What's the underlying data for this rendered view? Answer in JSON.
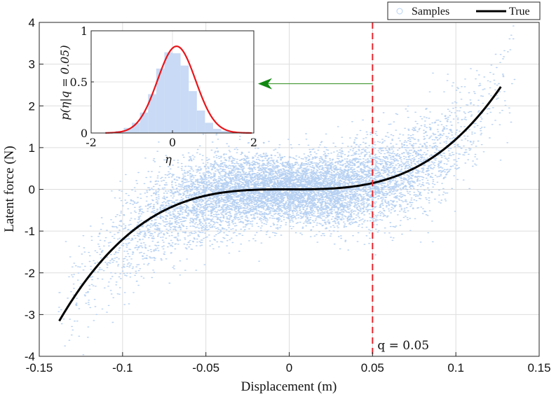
{
  "chart_data": [
    {
      "type": "scatter",
      "xlabel": "Displacement (m)",
      "ylabel": "Latent force (N)",
      "xlim": [
        -0.15,
        0.15
      ],
      "ylim": [
        -4,
        4
      ],
      "xticks": [
        "-0.15",
        "-0.1",
        "-0.05",
        "0",
        "0.05",
        "0.1",
        "0.15"
      ],
      "yticks": [
        "4",
        "3",
        "2",
        "1",
        "0",
        "-1",
        "-2",
        "-3",
        "-4"
      ],
      "grid": true,
      "legend_position": "top-right, outside",
      "series": [
        {
          "name": "Samples",
          "marker": "circle",
          "color": "#b7d1f2",
          "x_range": [
            -0.14,
            0.135
          ],
          "noise_sd": 0.38
        },
        {
          "name": "True",
          "style": "line",
          "color": "#000000",
          "x": [
            -0.138,
            -0.12,
            -0.1,
            -0.08,
            -0.06,
            -0.04,
            -0.02,
            0,
            0.02,
            0.04,
            0.05,
            0.06,
            0.08,
            0.1,
            0.11,
            0.12,
            0.127
          ],
          "y": [
            -3.15,
            -2.1,
            -1.22,
            -0.63,
            -0.27,
            -0.08,
            -0.01,
            0.0,
            0.01,
            0.08,
            0.16,
            0.27,
            0.63,
            1.22,
            1.62,
            2.1,
            2.43
          ]
        }
      ],
      "annotations": [
        {
          "type": "vline",
          "x": 0.05,
          "style": "dashed",
          "color": "#e8252b",
          "label": "q = 0.05"
        },
        {
          "type": "arrow",
          "from": [
            0.05,
            2.53
          ],
          "to": [
            -0.02,
            2.53
          ],
          "color": "#2a8a1a"
        }
      ]
    },
    {
      "type": "bar",
      "role": "inset",
      "xlabel": "η",
      "ylabel": "p(η|q = 0.05)",
      "xlim": [
        -2,
        2
      ],
      "ylim": [
        0,
        1
      ],
      "xticks": [
        "-2",
        "0",
        "2"
      ],
      "yticks": [
        "1",
        "0.5",
        "0"
      ],
      "histogram": {
        "bin_edges": [
          -1.6,
          -1.4,
          -1.2,
          -1.0,
          -0.8,
          -0.6,
          -0.4,
          -0.2,
          0.0,
          0.2,
          0.4,
          0.6,
          0.8,
          1.0,
          1.2,
          1.4,
          1.6
        ],
        "density": [
          0.01,
          0.02,
          0.05,
          0.1,
          0.2,
          0.38,
          0.63,
          0.79,
          0.78,
          0.66,
          0.41,
          0.22,
          0.1,
          0.04,
          0.02,
          0.01
        ],
        "color": "#c8daf5"
      },
      "series": [
        {
          "name": "density",
          "style": "line",
          "color": "#e8161b",
          "mean": 0.1,
          "sd": 0.47,
          "x_range": [
            -1.65,
            1.95
          ]
        }
      ]
    }
  ],
  "legend": {
    "items": [
      {
        "name": "Samples"
      },
      {
        "name": "True"
      }
    ]
  },
  "annotation_label": "q = 0.05"
}
